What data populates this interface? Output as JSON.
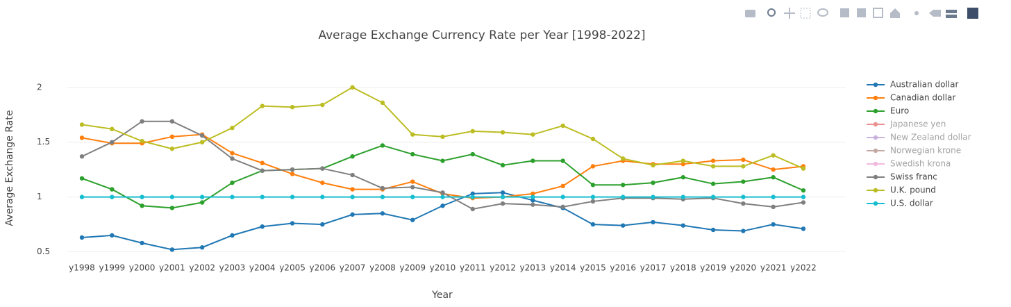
{
  "chart_data": {
    "type": "line",
    "title": "Average Exchange Currency Rate per Year [1998-2022]",
    "x_label": "Year",
    "y_label": "Average Exchange Rate",
    "categories": [
      "y1998",
      "y1999",
      "y2000",
      "y2001",
      "y2002",
      "y2003",
      "y2004",
      "y2005",
      "y2006",
      "y2007",
      "y2008",
      "y2009",
      "y2010",
      "y2011",
      "y2012",
      "y2013",
      "y2014",
      "y2015",
      "y2016",
      "y2017",
      "y2018",
      "y2019",
      "y2020",
      "y2021",
      "y2022"
    ],
    "ylim": [
      0.44,
      2.1
    ],
    "yticks": [
      0.5,
      1,
      1.5,
      2
    ],
    "grid": true,
    "legend": "right",
    "series": [
      {
        "name": "Australian dollar",
        "color": "#1f77b4",
        "values": [
          0.63,
          0.65,
          0.58,
          0.52,
          0.54,
          0.65,
          0.73,
          0.76,
          0.75,
          0.84,
          0.85,
          0.79,
          0.92,
          1.03,
          1.04,
          0.97,
          0.9,
          0.75,
          0.74,
          0.77,
          0.74,
          0.7,
          0.69,
          0.75,
          0.71
        ]
      },
      {
        "name": "Canadian dollar",
        "color": "#ff7f0e",
        "values": [
          1.54,
          1.49,
          1.49,
          1.55,
          1.57,
          1.4,
          1.31,
          1.21,
          1.13,
          1.07,
          1.07,
          1.14,
          1.03,
          0.99,
          1.0,
          1.03,
          1.1,
          1.28,
          1.33,
          1.3,
          1.3,
          1.33,
          1.34,
          1.25,
          1.28
        ]
      },
      {
        "name": "Euro",
        "color": "#2ca02c",
        "values": [
          1.17,
          1.07,
          0.92,
          0.9,
          0.95,
          1.13,
          1.24,
          1.25,
          1.26,
          1.37,
          1.47,
          1.39,
          1.33,
          1.39,
          1.29,
          1.33,
          1.33,
          1.11,
          1.11,
          1.13,
          1.18,
          1.12,
          1.14,
          1.18,
          1.06
        ]
      },
      {
        "name": "Japanese yen",
        "color": "#d62728",
        "visible": false
      },
      {
        "name": "New Zealand dollar",
        "color": "#9467bd",
        "visible": false
      },
      {
        "name": "Norwegian krone",
        "color": "#8c564b",
        "visible": false
      },
      {
        "name": "Swedish krona",
        "color": "#e377c2",
        "visible": false
      },
      {
        "name": "Swiss franc",
        "color": "#7f7f7f",
        "values": [
          1.37,
          1.5,
          1.69,
          1.69,
          1.56,
          1.35,
          1.24,
          1.25,
          1.26,
          1.2,
          1.08,
          1.09,
          1.04,
          0.89,
          0.94,
          0.93,
          0.91,
          0.96,
          0.99,
          0.99,
          0.98,
          0.99,
          0.94,
          0.91,
          0.95
        ]
      },
      {
        "name": "U.K. pound",
        "color": "#bcbd22",
        "values": [
          1.66,
          1.62,
          1.51,
          1.44,
          1.5,
          1.63,
          1.83,
          1.82,
          1.84,
          2.0,
          1.86,
          1.57,
          1.55,
          1.6,
          1.59,
          1.57,
          1.65,
          1.53,
          1.35,
          1.29,
          1.33,
          1.28,
          1.28,
          1.38,
          1.26
        ]
      },
      {
        "name": "U.S. dollar",
        "color": "#17becf",
        "values": [
          1,
          1,
          1,
          1,
          1,
          1,
          1,
          1,
          1,
          1,
          1,
          1,
          1,
          1,
          1,
          1,
          1,
          1,
          1,
          1,
          1,
          1,
          1,
          1,
          1
        ]
      }
    ]
  }
}
